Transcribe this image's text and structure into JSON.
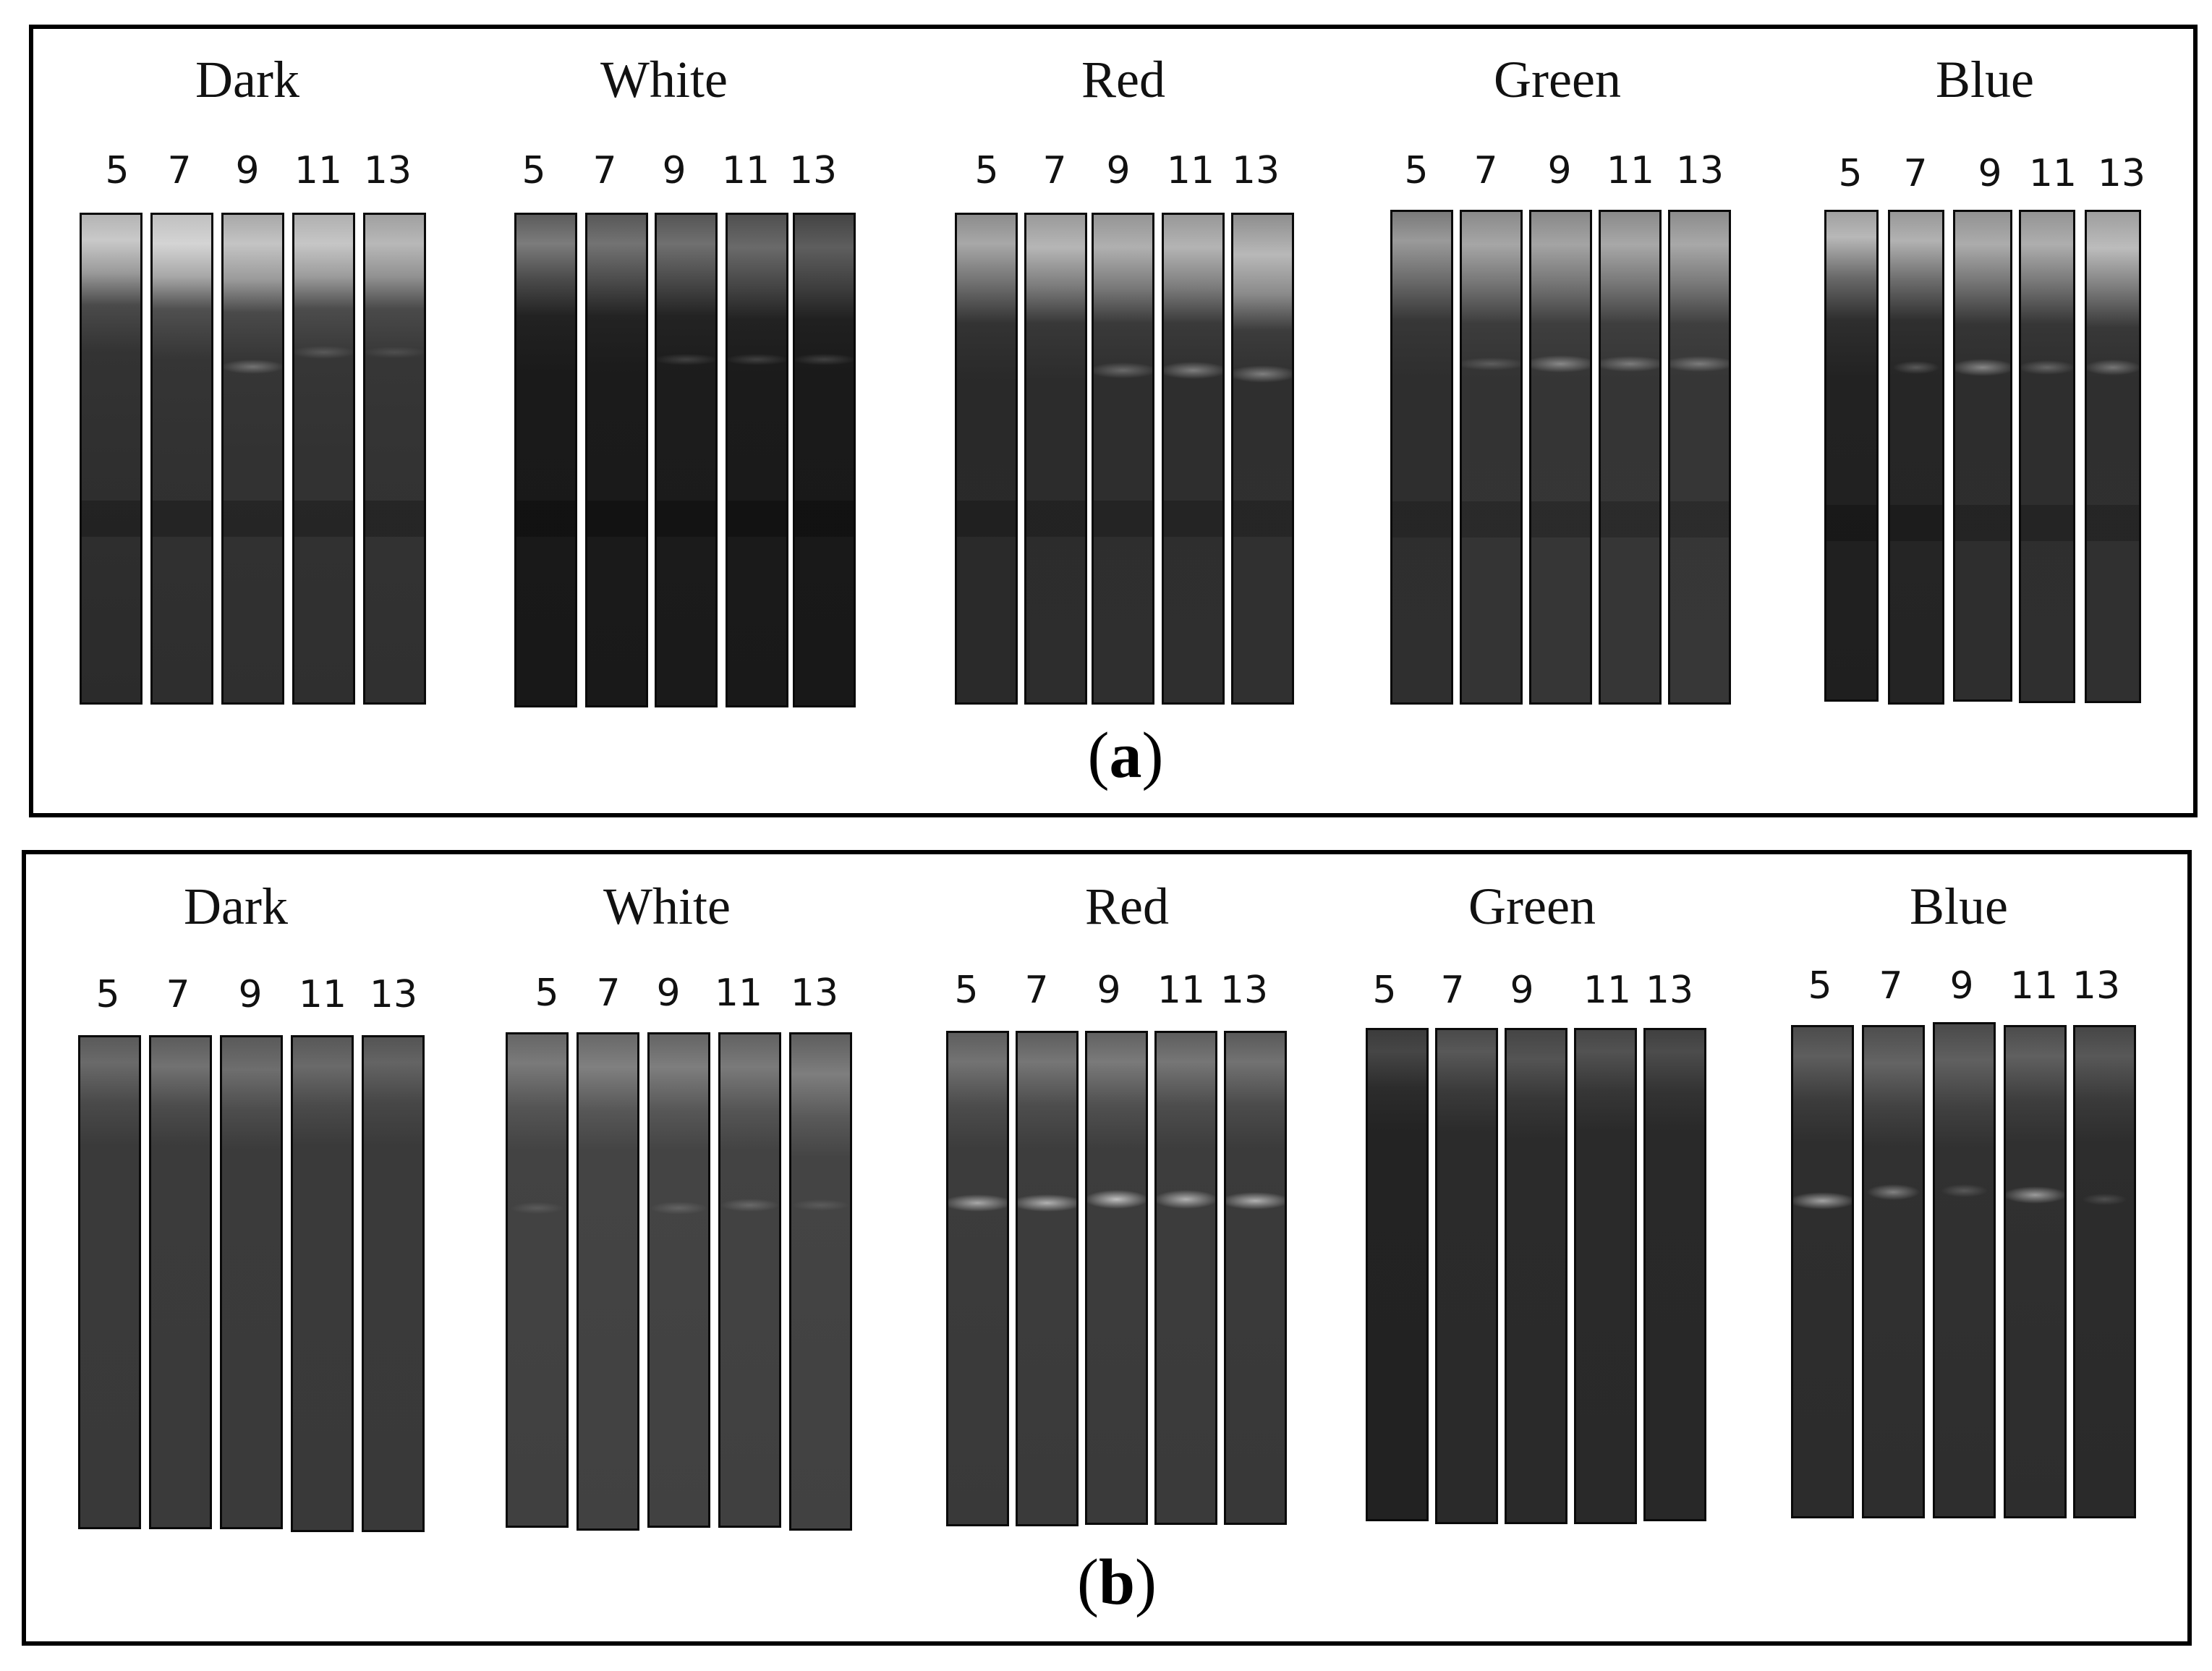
{
  "panels": [
    {
      "label": "a",
      "groups": [
        {
          "title": "Dark",
          "lanes": [
            "5",
            "7",
            "9",
            "11",
            "13"
          ]
        },
        {
          "title": "White",
          "lanes": [
            "5",
            "7",
            "9",
            "11",
            "13"
          ]
        },
        {
          "title": "Red",
          "lanes": [
            "5",
            "7",
            "9",
            "11",
            "13"
          ]
        },
        {
          "title": "Green",
          "lanes": [
            "5",
            "7",
            "9",
            "11",
            "13"
          ]
        },
        {
          "title": "Blue",
          "lanes": [
            "5",
            "7",
            "9",
            "11",
            "13"
          ]
        }
      ]
    },
    {
      "label": "b",
      "groups": [
        {
          "title": "Dark",
          "lanes": [
            "5",
            "7",
            "9",
            "11",
            "13"
          ]
        },
        {
          "title": "White",
          "lanes": [
            "5",
            "7",
            "9",
            "11",
            "13"
          ]
        },
        {
          "title": "Red",
          "lanes": [
            "5",
            "7",
            "9",
            "11",
            "13"
          ]
        },
        {
          "title": "Green",
          "lanes": [
            "5",
            "7",
            "9",
            "11",
            "13"
          ]
        },
        {
          "title": "Blue",
          "lanes": [
            "5",
            "7",
            "9",
            "11",
            "13"
          ]
        }
      ]
    }
  ]
}
